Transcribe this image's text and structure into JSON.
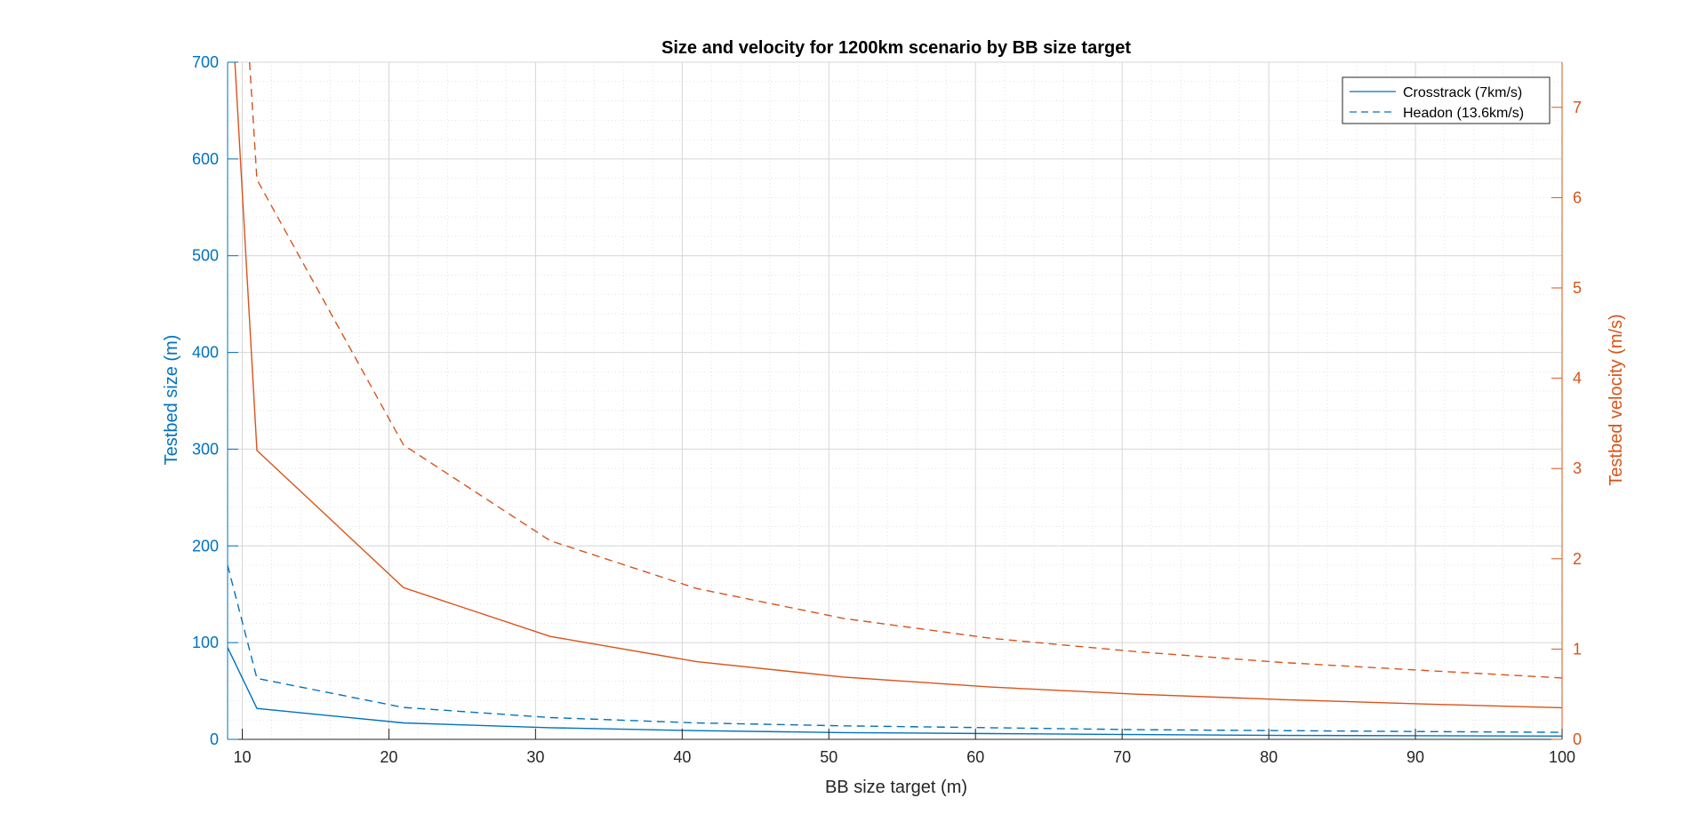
{
  "chart_data": {
    "type": "line",
    "title": "Size and velocity for 1200km scenario by BB size target",
    "xlabel": "BB size target (m)",
    "ylabel_left": "Testbed size (m)",
    "ylabel_right": "Testbed velocity (m/s)",
    "xlim": [
      9,
      100
    ],
    "ylim_left": [
      0,
      700
    ],
    "ylim_right": [
      0,
      7.5
    ],
    "xticks": [
      10,
      20,
      30,
      40,
      50,
      60,
      70,
      80,
      90,
      100
    ],
    "yticks_left": [
      0,
      100,
      200,
      300,
      400,
      500,
      600,
      700
    ],
    "yticks_right": [
      0,
      1,
      2,
      3,
      4,
      5,
      6,
      7
    ],
    "grid": "on (major and minor)",
    "legend_position": "top-right",
    "legend": [
      "Crosstrack (7km/s)",
      "Headon (13.6km/s)"
    ],
    "series": [
      {
        "name": "Crosstrack (7km/s)",
        "axis": "left",
        "style": "solid",
        "color": "#0072BD",
        "x": [
          9,
          11,
          21,
          31,
          41,
          51,
          61,
          71,
          81,
          91,
          100
        ],
        "y": [
          95,
          32,
          17,
          12,
          9,
          7,
          6,
          5,
          4,
          3.8,
          3.4
        ]
      },
      {
        "name": "Headon (13.6km/s)",
        "axis": "left",
        "style": "dashed",
        "color": "#0072BD",
        "x": [
          9,
          11,
          21,
          31,
          41,
          51,
          61,
          71,
          81,
          91,
          100
        ],
        "y": [
          180,
          63,
          33,
          22.5,
          17,
          14,
          12,
          10,
          9,
          8,
          7.3
        ]
      },
      {
        "name": "Crosstrack (7km/s)",
        "axis": "right",
        "style": "solid",
        "color": "#D95319",
        "x": [
          9.5,
          11,
          21,
          31,
          41,
          51,
          61,
          71,
          81,
          91,
          100
        ],
        "y": [
          7.5,
          3.2,
          1.68,
          1.14,
          0.86,
          0.69,
          0.58,
          0.5,
          0.44,
          0.39,
          0.35
        ]
      },
      {
        "name": "Headon (13.6km/s)",
        "axis": "right",
        "style": "dashed",
        "color": "#D95319",
        "x": [
          10.5,
          11,
          21,
          31,
          41,
          51,
          61,
          71,
          81,
          91,
          100
        ],
        "y": [
          7.5,
          6.2,
          3.26,
          2.2,
          1.67,
          1.34,
          1.12,
          0.97,
          0.85,
          0.76,
          0.68
        ]
      }
    ]
  }
}
